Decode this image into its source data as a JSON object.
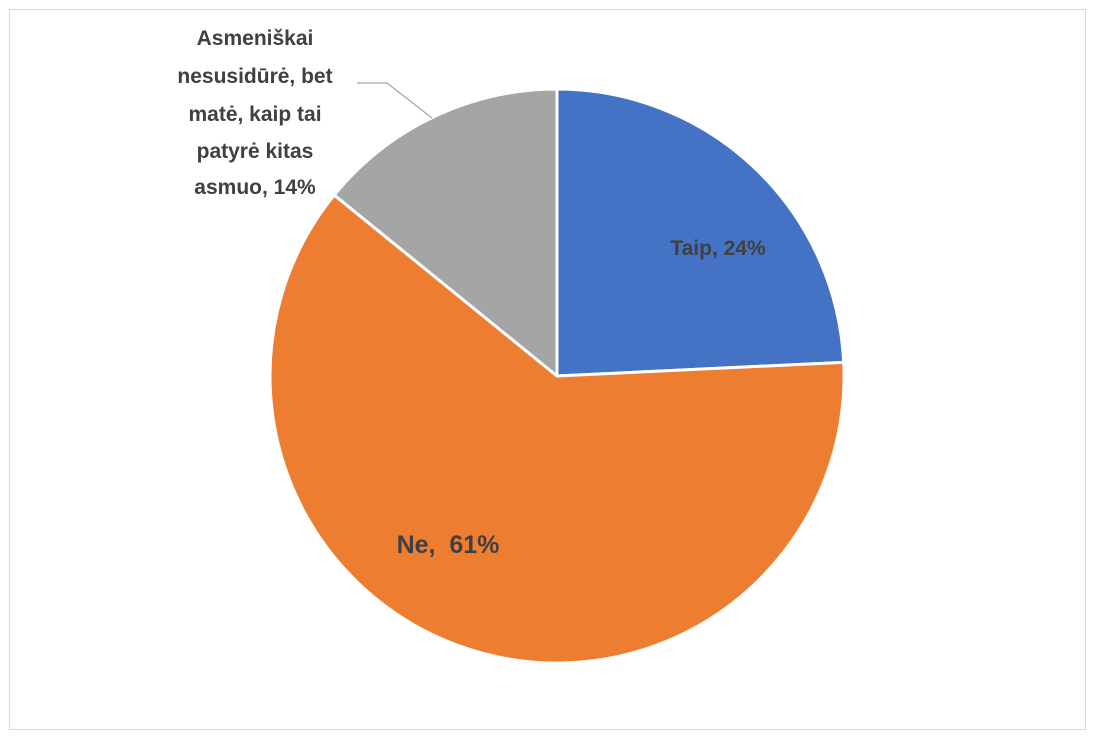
{
  "chart_data": {
    "type": "pie",
    "title": "",
    "slices": [
      {
        "label": "Taip",
        "value": 24,
        "display": "Taip, 24%",
        "color": "#4472C4"
      },
      {
        "label": "Ne",
        "value": 61,
        "display": "Ne,  61%",
        "color": "#ED7D31"
      },
      {
        "label": "Asmeniškai nesusidūrė, bet matė, kaip tai patyrė kitas asmuo",
        "value": 14,
        "display_lines": [
          "Asmeniškai",
          "nesusidūrė, bet",
          "matė, kaip tai",
          "patyrė kitas",
          "asmuo, 14%"
        ],
        "color": "#A5A5A5"
      }
    ],
    "legend": "none",
    "data_labels": "category and percentage"
  }
}
